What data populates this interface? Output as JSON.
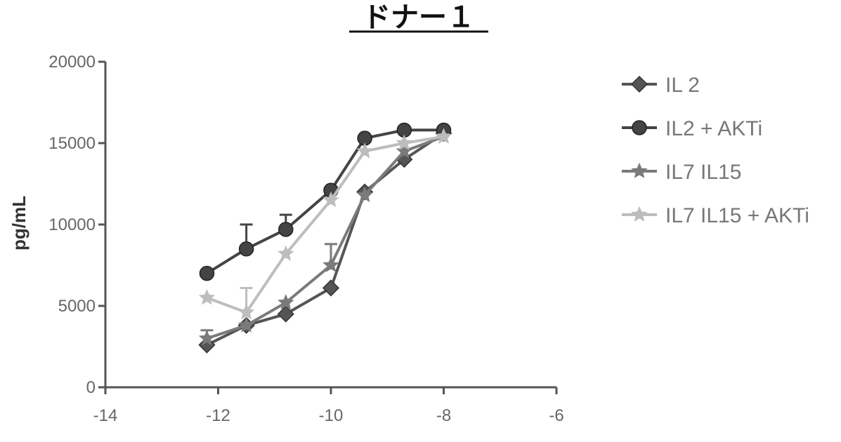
{
  "chart_data": {
    "type": "line",
    "title": "ドナー１",
    "xlabel": "",
    "ylabel": "pg/mL",
    "xlim": [
      -14,
      -6
    ],
    "ylim": [
      0,
      20000
    ],
    "xticks": [
      -14,
      -12,
      -10,
      -8,
      -6
    ],
    "xtick_labels": [
      "-14",
      "-12",
      "-10",
      "-8",
      "-6"
    ],
    "yticks": [
      0,
      5000,
      10000,
      15000,
      20000
    ],
    "ytick_labels": [
      "0",
      "5000",
      "10000",
      "15000",
      "20000"
    ],
    "grid": false,
    "legend_position": "right",
    "x": [
      -12.2,
      -11.5,
      -10.8,
      -10,
      -9.4,
      -8.7,
      -8
    ],
    "series": [
      {
        "name": "IL 2",
        "values": [
          2600,
          3800,
          4500,
          6100,
          12000,
          14000,
          15600
        ],
        "color": "#555555",
        "marker": "diamond",
        "errors": [
          0,
          0,
          0,
          0,
          0,
          0,
          0
        ]
      },
      {
        "name": "IL2 + AKTi",
        "values": [
          7000,
          8500,
          9700,
          12100,
          15300,
          15800,
          15800
        ],
        "color": "#444444",
        "marker": "circle",
        "errors": [
          0,
          1500,
          900,
          0,
          0,
          0,
          0
        ]
      },
      {
        "name": "IL7 IL15",
        "values": [
          3000,
          3800,
          5200,
          7500,
          11800,
          14500,
          15400
        ],
        "color": "#7a7a7a",
        "marker": "star",
        "errors": [
          500,
          0,
          0,
          1300,
          0,
          0,
          0
        ]
      },
      {
        "name": "IL7 IL15 + AKTi",
        "values": [
          5500,
          4600,
          8200,
          11500,
          14500,
          15000,
          15400
        ],
        "color": "#bdbdbd",
        "marker": "star",
        "errors": [
          0,
          1500,
          0,
          0,
          0,
          0,
          0
        ]
      }
    ]
  }
}
